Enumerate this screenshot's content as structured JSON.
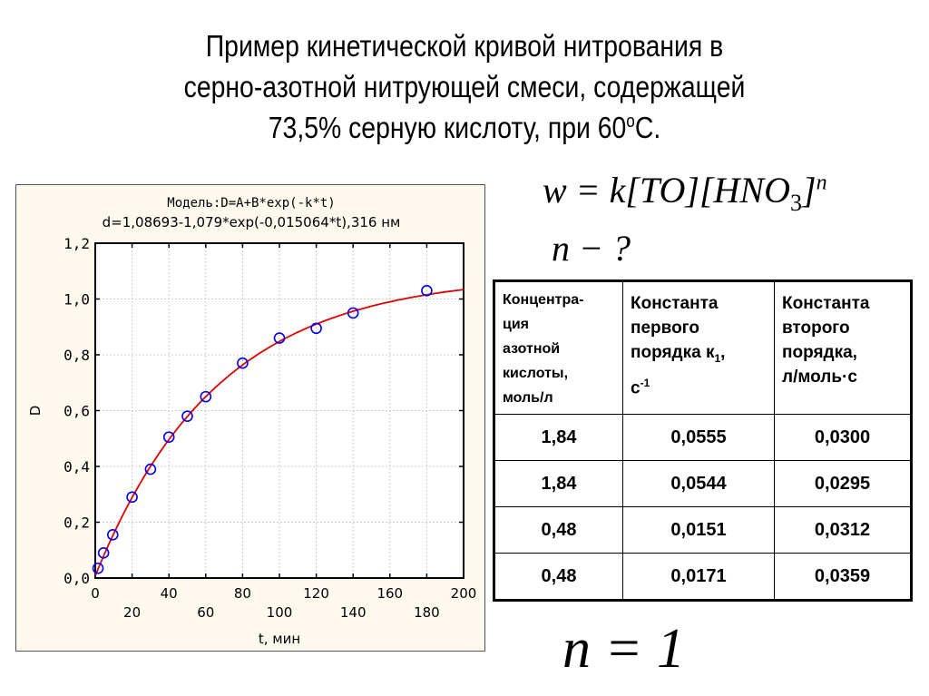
{
  "title": {
    "line1": "Пример кинетической кривой нитрования в",
    "line2": "серно-азотной нитрующей смеси, содержащей",
    "line3_main": "73,5% серную кислоту, при 60",
    "line3_sup": "о",
    "line3_end": "С."
  },
  "formulas": {
    "rate_law_prefix": "w = k[TO][HNO",
    "rate_law_sub": "3",
    "rate_law_close": "]",
    "rate_law_exp": "n",
    "question": "n − ?",
    "answer": "n = 1"
  },
  "table": {
    "headers": {
      "col1_lines": [
        "Концентра-",
        "ция",
        "азотной",
        "кислоты,",
        "моль/л"
      ],
      "col2_l1": "Константа",
      "col2_l2": "первого",
      "col2_l3": "порядка к",
      "col2_l3_sub": "1",
      "col2_l3_end": ",",
      "col2_l4": "с",
      "col2_l4_sup": "-1",
      "col3_l1": "Константа",
      "col3_l2": "второго",
      "col3_l3": "порядка,",
      "col3_l4": "л/моль·с"
    },
    "rows": [
      [
        "1,84",
        "0,0555",
        "0,0300"
      ],
      [
        "1,84",
        "0,0544",
        "0,0295"
      ],
      [
        "0,48",
        "0,0151",
        "0,0312"
      ],
      [
        "0,48",
        "0,0171",
        "0,0359"
      ]
    ]
  },
  "chart_data": {
    "type": "scatter",
    "title": "Модель:D=A+B*exp(-k*t)",
    "subtitle": "d=1,08693-1,079*exp(-0,015064*t),316 нм",
    "xlabel": "t, мин",
    "ylabel": "D",
    "xlim": [
      0,
      200
    ],
    "ylim": [
      0,
      1.2
    ],
    "x_ticks_upper": [
      "0",
      "40",
      "80",
      "120",
      "160",
      "200"
    ],
    "x_ticks_lower": [
      "20",
      "60",
      "100",
      "140",
      "180"
    ],
    "y_ticks": [
      "0,0",
      "0,2",
      "0,4",
      "0,6",
      "0,8",
      "1,0",
      "1,2"
    ],
    "grid": true,
    "series": [
      {
        "name": "experimental",
        "marker": "open-circle",
        "color": "#0000ee",
        "x": [
          1.5,
          4.5,
          9.5,
          20,
          30,
          40,
          50,
          60,
          80,
          100,
          120,
          140,
          180
        ],
        "y": [
          0.035,
          0.09,
          0.155,
          0.29,
          0.39,
          0.505,
          0.58,
          0.65,
          0.77,
          0.86,
          0.895,
          0.95,
          1.03
        ]
      },
      {
        "name": "fit",
        "type": "line",
        "color": "#e00000",
        "model": {
          "A": 1.08693,
          "B": -1.079,
          "k": 0.015064
        }
      }
    ],
    "colors": {
      "panel_bg": "#fdf9ef",
      "plot_bg": "#ffffff",
      "grid": "#cccccc"
    }
  }
}
